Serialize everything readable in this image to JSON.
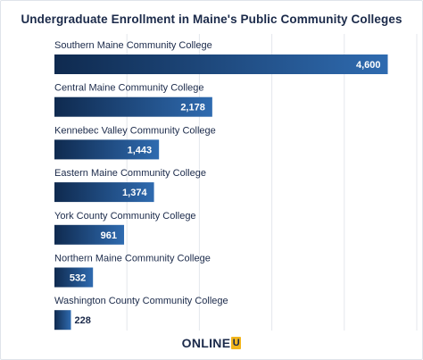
{
  "chart_data": {
    "type": "bar",
    "orientation": "horizontal",
    "title": "Undergraduate Enrollment in Maine's Public Community Colleges",
    "categories": [
      "Southern Maine Community College",
      "Central Maine Community College",
      "Kennebec Valley Community College",
      "Eastern Maine Community College",
      "York County Community College",
      "Northern Maine Community College",
      "Washington County Community College"
    ],
    "values": [
      4600,
      2178,
      1443,
      1374,
      961,
      532,
      228
    ],
    "value_labels": [
      "4,600",
      "2,178",
      "1,443",
      "1,374",
      "961",
      "532",
      "228"
    ],
    "xlim": [
      0,
      5000
    ],
    "grid": true,
    "legend": "none",
    "colors": {
      "bar_start": "#0f2a4f",
      "bar_end": "#2f6bb0",
      "gridline": "#e4e7ec",
      "label_text": "#1b2a4a",
      "value_text_inside": "#ffffff",
      "value_text_outside": "#1b2a4a"
    }
  },
  "branding": {
    "logo_text": "ONLINE",
    "logo_mark": "U",
    "logo_accent_color": "#f2b51c"
  }
}
